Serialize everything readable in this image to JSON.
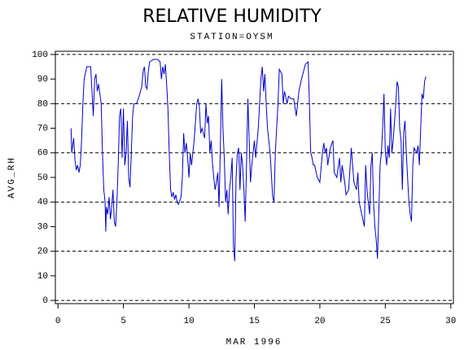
{
  "chart_data": {
    "type": "line",
    "title": "RELATIVE HUMIDITY",
    "subtitle": "STATION=OYSM",
    "xlabel": "MAR 1996",
    "ylabel": "AVG_RH",
    "x": [
      1.0,
      1.05,
      1.2,
      1.3,
      1.4,
      1.5,
      1.6,
      1.7,
      1.8,
      1.9,
      2.0,
      2.2,
      2.5,
      2.6,
      2.7,
      2.8,
      2.9,
      3.0,
      3.1,
      3.3,
      3.4,
      3.5,
      3.6,
      3.65,
      3.7,
      3.8,
      3.9,
      4.0,
      4.1,
      4.2,
      4.3,
      4.4,
      4.5,
      4.6,
      4.7,
      4.8,
      4.9,
      5.0,
      5.1,
      5.2,
      5.3,
      5.4,
      5.5,
      5.6,
      5.7,
      5.8,
      6.0,
      6.2,
      6.4,
      6.5,
      6.6,
      6.7,
      6.8,
      6.9,
      7.0,
      7.3,
      7.6,
      7.8,
      7.9,
      8.0,
      8.1,
      8.2,
      8.3,
      8.4,
      8.5,
      8.6,
      8.7,
      8.8,
      8.9,
      9.0,
      9.1,
      9.2,
      9.4,
      9.5,
      9.6,
      9.7,
      9.8,
      9.9,
      10.0,
      10.1,
      10.2,
      10.4,
      10.6,
      10.7,
      10.8,
      10.9,
      11.0,
      11.2,
      11.3,
      11.4,
      11.5,
      11.6,
      11.7,
      11.8,
      11.9,
      12.0,
      12.1,
      12.2,
      12.3,
      12.4,
      12.5,
      12.6,
      12.7,
      12.8,
      12.9,
      13.0,
      13.1,
      13.2,
      13.3,
      13.4,
      13.5,
      13.6,
      13.7,
      13.8,
      13.9,
      14.0,
      14.1,
      14.2,
      14.3,
      14.4,
      14.5,
      14.6,
      14.7,
      14.8,
      14.9,
      15.0,
      15.1,
      15.3,
      15.5,
      15.6,
      15.7,
      15.8,
      15.9,
      16.0,
      16.2,
      16.4,
      16.5,
      16.6,
      16.8,
      16.9,
      17.1,
      17.2,
      17.3,
      17.5,
      17.6,
      17.8,
      18.0,
      18.2,
      18.4,
      18.6,
      18.9,
      19.1,
      19.2,
      19.3,
      19.4,
      19.5,
      19.6,
      19.8,
      20.0,
      20.2,
      20.3,
      20.4,
      20.5,
      20.6,
      20.8,
      21.0,
      21.1,
      21.3,
      21.5,
      21.6,
      21.7,
      21.9,
      22.0,
      22.2,
      22.4,
      22.6,
      22.8,
      22.9,
      23.0,
      23.2,
      23.4,
      23.5,
      23.6,
      23.7,
      23.8,
      23.9,
      24.0,
      24.1,
      24.2,
      24.3,
      24.4,
      24.5,
      24.6,
      24.7,
      24.8,
      24.9,
      25.0,
      25.1,
      25.2,
      25.3,
      25.4,
      25.5,
      25.6,
      25.8,
      25.9,
      26.0,
      26.1,
      26.2,
      26.3,
      26.4,
      26.5,
      26.6,
      26.7,
      26.8,
      26.9,
      27.0,
      27.1,
      27.2,
      27.4,
      27.5,
      27.6,
      27.7,
      27.8,
      27.9,
      28.0,
      28.1
    ],
    "series": [
      {
        "color": "#0000cc",
        "values": [
          70,
          60,
          66,
          57,
          53,
          55,
          52,
          55,
          65,
          80,
          90,
          95,
          95,
          85,
          75,
          90,
          92,
          85,
          88,
          80,
          60,
          45,
          40,
          28,
          38,
          35,
          42,
          33,
          38,
          45,
          32,
          30,
          40,
          55,
          75,
          78,
          58,
          78,
          55,
          60,
          73,
          50,
          46,
          60,
          75,
          80,
          80,
          83,
          87,
          93,
          95,
          87,
          86,
          93,
          97,
          98,
          98,
          97,
          90,
          95,
          92,
          96,
          88,
          78,
          60,
          45,
          42,
          44,
          41,
          43,
          40,
          39,
          42,
          50,
          68,
          60,
          64,
          58,
          50,
          60,
          55,
          65,
          80,
          82,
          79,
          68,
          70,
          66,
          80,
          72,
          75,
          60,
          65,
          56,
          50,
          45,
          48,
          52,
          38,
          62,
          90,
          70,
          58,
          40,
          45,
          35,
          45,
          50,
          58,
          22,
          16,
          50,
          60,
          62,
          45,
          60,
          55,
          45,
          32,
          55,
          82,
          65,
          48,
          55,
          60,
          65,
          58,
          70,
          90,
          95,
          85,
          92,
          80,
          70,
          60,
          42,
          40,
          60,
          80,
          94,
          92,
          80,
          85,
          80,
          83,
          82,
          82,
          75,
          85,
          90,
          96,
          97,
          80,
          60,
          58,
          55,
          55,
          50,
          48,
          60,
          64,
          60,
          62,
          55,
          62,
          65,
          52,
          50,
          58,
          48,
          55,
          48,
          43,
          45,
          62,
          48,
          45,
          52,
          40,
          35,
          30,
          55,
          45,
          40,
          35,
          55,
          60,
          40,
          30,
          25,
          17,
          35,
          55,
          60,
          70,
          84,
          60,
          55,
          63,
          58,
          78,
          60,
          65,
          80,
          89,
          87,
          70,
          65,
          45,
          68,
          73,
          60,
          50,
          40,
          35,
          32,
          55,
          62,
          60,
          63,
          55,
          70,
          84,
          82,
          89,
          91
        ]
      }
    ],
    "xlim": [
      -0.2,
      30.2
    ],
    "xticks": [
      0,
      5,
      10,
      15,
      20,
      25,
      30
    ],
    "ylim": [
      -1.3,
      101.3
    ],
    "yticks": [
      0,
      10,
      20,
      30,
      40,
      50,
      60,
      70,
      80,
      90,
      100
    ],
    "grid_lines": [
      0,
      20,
      40,
      60,
      80,
      100
    ]
  }
}
